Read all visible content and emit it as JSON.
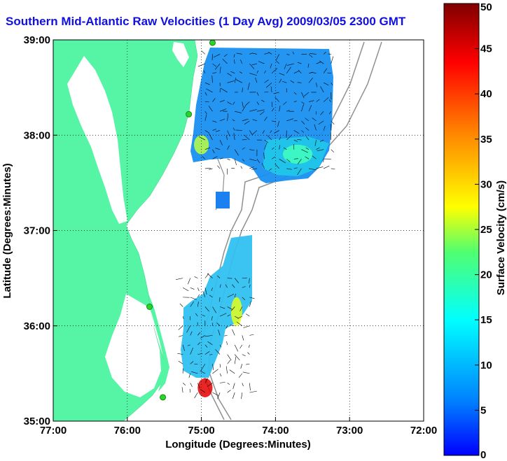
{
  "chart_data": {
    "type": "heatmap",
    "title": "Southern Mid-Atlantic Raw Velocities (1 Day Avg) 2009/03/05 2300 GMT",
    "xlabel": "Longitude (Degrees:Minutes)",
    "ylabel": "Latitude (Degrees:Minutes)",
    "colorbar_label": "Surface Velocity (cm/s)",
    "xlim": [
      -77,
      -72
    ],
    "ylim": [
      35,
      39
    ],
    "clim": [
      0,
      50
    ],
    "grid": true,
    "x_ticks": [
      {
        "value": -77,
        "label": "77:00"
      },
      {
        "value": -76,
        "label": "76:00"
      },
      {
        "value": -75,
        "label": "75:00"
      },
      {
        "value": -74,
        "label": "74:00"
      },
      {
        "value": -73,
        "label": "73:00"
      },
      {
        "value": -72,
        "label": "72:00"
      }
    ],
    "y_ticks": [
      {
        "value": 39,
        "label": "39:00"
      },
      {
        "value": 38,
        "label": "38:00"
      },
      {
        "value": 37,
        "label": "37:00"
      },
      {
        "value": 36,
        "label": "36:00"
      },
      {
        "value": 35,
        "label": "35:00"
      }
    ],
    "colorbar_ticks": [
      0,
      5,
      10,
      15,
      20,
      25,
      30,
      35,
      40,
      45,
      50
    ],
    "colors": {
      "land": "#55f5a5",
      "contour": "#909090",
      "low": "#0050ff",
      "high": "#800000",
      "site_marker": "#2bd42b"
    },
    "velocity_regions": [
      {
        "name": "north-field",
        "lon": [
          -75.0,
          -73.2
        ],
        "lat": [
          37.6,
          38.95
        ],
        "mean_speed": 7
      },
      {
        "name": "north-hotspot-west",
        "lon": [
          -75.1,
          -74.9
        ],
        "lat": [
          37.8,
          38.0
        ],
        "mean_speed": 28
      },
      {
        "name": "north-hotspot-east",
        "lon": [
          -73.9,
          -73.5
        ],
        "lat": [
          37.7,
          37.9
        ],
        "mean_speed": 22
      },
      {
        "name": "isolated-cell",
        "lon": [
          -74.85,
          -74.72
        ],
        "lat": [
          37.22,
          37.38
        ],
        "mean_speed": 3
      },
      {
        "name": "south-field",
        "lon": [
          -75.3,
          -74.3
        ],
        "lat": [
          35.25,
          36.6
        ],
        "mean_speed": 12
      },
      {
        "name": "south-hotspot",
        "lon": [
          -74.6,
          -74.45
        ],
        "lat": [
          36.0,
          36.3
        ],
        "mean_speed": 30
      },
      {
        "name": "cape-hatteras-hotspot",
        "lon": [
          -75.05,
          -74.85
        ],
        "lat": [
          35.25,
          35.45
        ],
        "mean_speed": 45
      }
    ],
    "radar_sites": [
      {
        "lon": -74.85,
        "lat": 38.97
      },
      {
        "lon": -75.17,
        "lat": 38.22
      },
      {
        "lon": -75.7,
        "lat": 36.2
      },
      {
        "lon": -75.52,
        "lat": 35.25
      }
    ]
  }
}
